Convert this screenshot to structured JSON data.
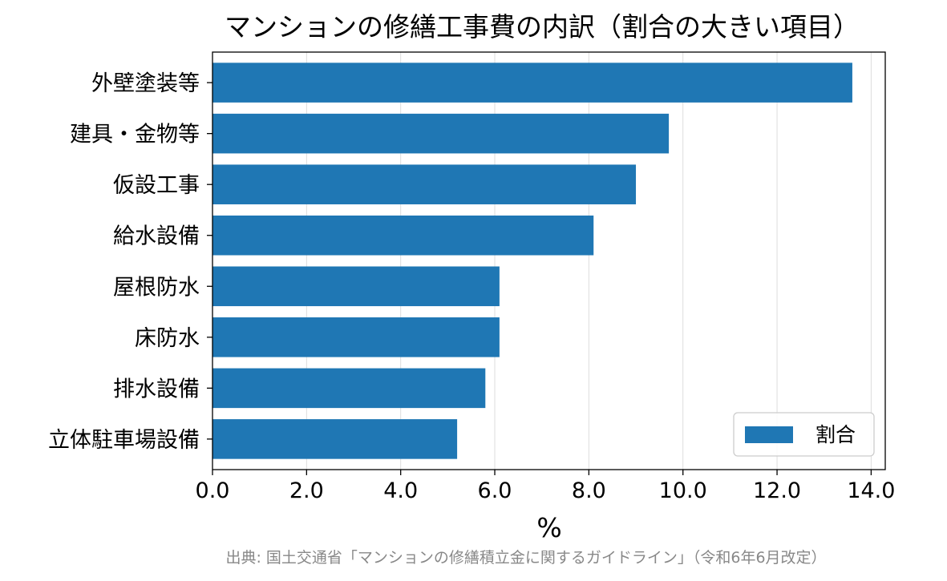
{
  "chart_data": {
    "type": "bar",
    "orientation": "horizontal",
    "title": "マンションの修繕工事費の内訳（割合の大きい項目）",
    "xlabel": "%",
    "ylabel": "",
    "categories": [
      "外壁塗装等",
      "建具・金物等",
      "仮設工事",
      "給水設備",
      "屋根防水",
      "床防水",
      "排水設備",
      "立体駐車場設備"
    ],
    "series": [
      {
        "name": "割合",
        "values": [
          13.6,
          9.7,
          9.0,
          8.1,
          6.1,
          6.1,
          5.8,
          5.2
        ],
        "color": "#1f77b4"
      }
    ],
    "xlim": [
      0,
      14.3
    ],
    "xticks": [
      "0.0",
      "2.0",
      "4.0",
      "6.0",
      "8.0",
      "10.0",
      "12.0",
      "14.0"
    ],
    "grid": "x",
    "legend_position": "lower-right"
  },
  "source_note": "出典: 国土交通省「マンションの修繕積立金に関するガイドライン」（令和6年6月改定）"
}
